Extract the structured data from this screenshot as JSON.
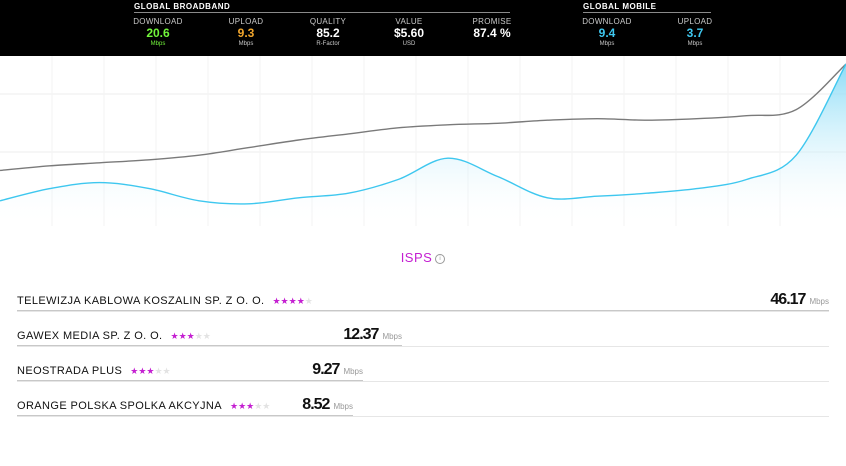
{
  "header": {
    "broadband": {
      "title": "GLOBAL BROADBAND",
      "stats": [
        {
          "label": "DOWNLOAD",
          "value": "20.6",
          "unit": "Mbps",
          "color": "#72f53b"
        },
        {
          "label": "UPLOAD",
          "value": "9.3",
          "unit": "Mbps",
          "color": "#f0a52c"
        },
        {
          "label": "QUALITY",
          "value": "85.2",
          "unit": "R-Factor",
          "color": "#ffffff"
        },
        {
          "label": "VALUE",
          "value": "$5.60",
          "unit": "USD",
          "color": "#ffffff"
        },
        {
          "label": "PROMISE",
          "value": "87.4 %",
          "unit": "",
          "color": "#ffffff"
        }
      ]
    },
    "mobile": {
      "title": "GLOBAL MOBILE",
      "stats": [
        {
          "label": "DOWNLOAD",
          "value": "9.4",
          "unit": "Mbps",
          "color": "#3ec7ef"
        },
        {
          "label": "UPLOAD",
          "value": "3.7",
          "unit": "Mbps",
          "color": "#3ec7ef"
        }
      ]
    }
  },
  "chart_data": {
    "type": "line",
    "series": [
      {
        "color": "#7a7a7a",
        "values": [
          30,
          33,
          35,
          37,
          40,
          45,
          50,
          54,
          58,
          60,
          61,
          63,
          64,
          63,
          64,
          66,
          70,
          100
        ]
      },
      {
        "color": "#3ec7ef",
        "values": [
          10,
          18,
          22,
          18,
          10,
          8,
          12,
          15,
          24,
          38,
          26,
          12,
          13,
          15,
          18,
          24,
          40,
          100
        ]
      }
    ],
    "colors": {
      "fill_top": "#7fd8f5",
      "fill_bottom": "#ffffff"
    }
  },
  "isps": {
    "title": "ISPS",
    "info_icon": "info-icon",
    "accent": "#c41fd1",
    "items": [
      {
        "name": "TELEWIZJA KABLOWA KOSZALIN SP. Z O. O.",
        "stars": 4,
        "speed": "46.17",
        "unit": "Mbps"
      },
      {
        "name": "GAWEX MEDIA SP. Z O. O.",
        "stars": 3,
        "speed": "12.37",
        "unit": "Mbps"
      },
      {
        "name": "NEOSTRADA PLUS",
        "stars": 3,
        "speed": "9.27",
        "unit": "Mbps"
      },
      {
        "name": "ORANGE POLSKA SPOLKA AKCYJNA",
        "stars": 3,
        "speed": "8.52",
        "unit": "Mbps"
      }
    ]
  }
}
